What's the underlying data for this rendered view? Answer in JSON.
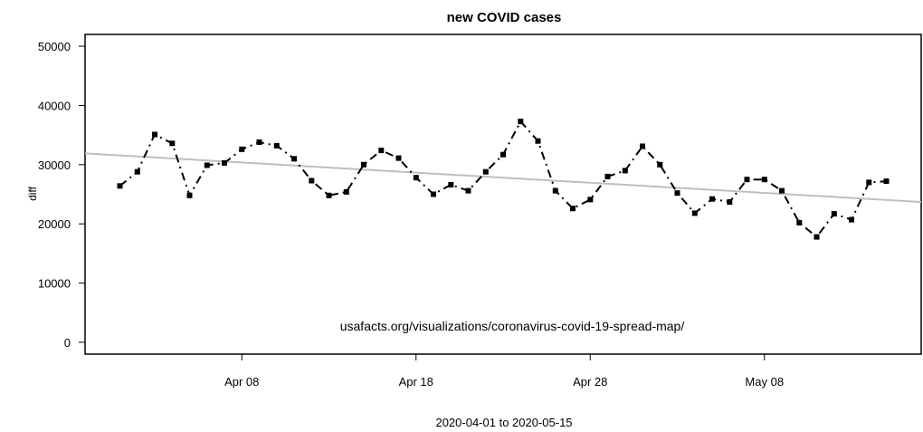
{
  "chart_data": {
    "type": "line",
    "title": "new COVID cases",
    "xlabel": "2020-04-01 to 2020-05-15",
    "ylabel": "diff",
    "annotation": "usafacts.org/visualizations/coronavirus-covid-19-spread-map/",
    "xlim": [
      "2020-03-30",
      "2020-05-17"
    ],
    "ylim": [
      -2000,
      52000
    ],
    "x_ticks": [
      {
        "date": "2020-04-08",
        "label": "Apr 08"
      },
      {
        "date": "2020-04-18",
        "label": "Apr 18"
      },
      {
        "date": "2020-04-28",
        "label": "Apr 28"
      },
      {
        "date": "2020-05-08",
        "label": "May 08"
      }
    ],
    "y_ticks": [
      {
        "value": 0,
        "label": "0"
      },
      {
        "value": 10000,
        "label": "10000"
      },
      {
        "value": 20000,
        "label": "20000"
      },
      {
        "value": 30000,
        "label": "30000"
      },
      {
        "value": 40000,
        "label": "40000"
      },
      {
        "value": 50000,
        "label": "50000"
      }
    ],
    "grid": false,
    "series": [
      {
        "style": "points connected by dash-dot line",
        "color": "#000000",
        "x": [
          "2020-04-01",
          "2020-04-02",
          "2020-04-03",
          "2020-04-04",
          "2020-04-05",
          "2020-04-06",
          "2020-04-07",
          "2020-04-08",
          "2020-04-09",
          "2020-04-10",
          "2020-04-11",
          "2020-04-12",
          "2020-04-13",
          "2020-04-14",
          "2020-04-15",
          "2020-04-16",
          "2020-04-17",
          "2020-04-18",
          "2020-04-19",
          "2020-04-20",
          "2020-04-21",
          "2020-04-22",
          "2020-04-23",
          "2020-04-24",
          "2020-04-25",
          "2020-04-26",
          "2020-04-27",
          "2020-04-28",
          "2020-04-29",
          "2020-04-30",
          "2020-05-01",
          "2020-05-02",
          "2020-05-03",
          "2020-05-04",
          "2020-05-05",
          "2020-05-06",
          "2020-05-07",
          "2020-05-08",
          "2020-05-09",
          "2020-05-10",
          "2020-05-11",
          "2020-05-12",
          "2020-05-13",
          "2020-05-14",
          "2020-05-15"
        ],
        "y": [
          26400,
          28800,
          35100,
          33600,
          24800,
          29900,
          30300,
          32600,
          33800,
          33200,
          31000,
          27300,
          24800,
          25400,
          30000,
          32400,
          31100,
          27800,
          25000,
          26600,
          25600,
          28800,
          31700,
          37300,
          34000,
          25600,
          22600,
          24100,
          28000,
          29000,
          33100,
          30000,
          25200,
          21800,
          24200,
          23700,
          27500,
          27500,
          25600,
          20200,
          17800,
          21700,
          20700,
          27000,
          27200
        ]
      },
      {
        "style": "linear trend line",
        "color": "#bfbfbf",
        "x": [
          "2020-03-30",
          "2020-05-17"
        ],
        "y": [
          31900,
          23700
        ]
      }
    ]
  }
}
